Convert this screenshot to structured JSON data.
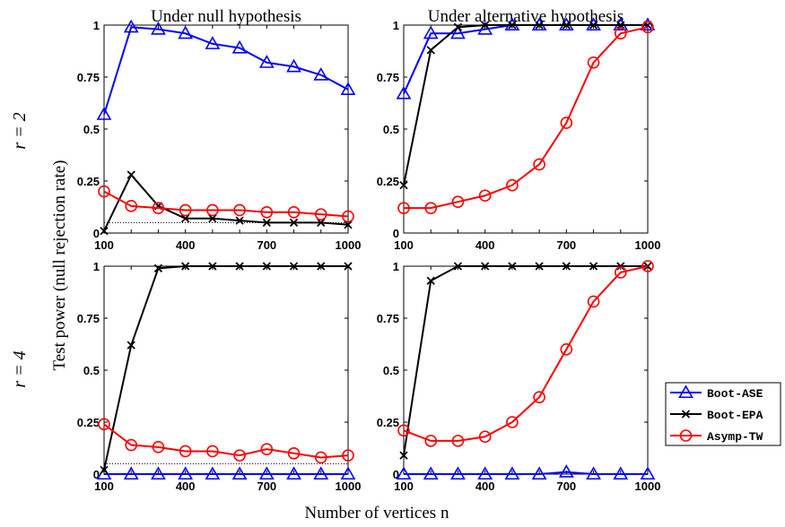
{
  "figure": {
    "column_titles": [
      "Under null hypothesis",
      "Under alternative hypothesis"
    ],
    "row_labels": [
      "r = 2",
      "r = 4"
    ],
    "ylabel": "Test power (null rejection rate)",
    "xlabel": "Number of vertices n"
  },
  "legend": [
    {
      "name": "Boot-ASE",
      "color": "#0000ff",
      "marker": "triangle"
    },
    {
      "name": "Boot-EPA",
      "color": "#000000",
      "marker": "x"
    },
    {
      "name": "Asymp-TW",
      "color": "#ff0000",
      "marker": "circle"
    }
  ],
  "chart_data": [
    {
      "type": "line",
      "title": "Under null hypothesis",
      "row": "r = 2",
      "x": [
        100,
        200,
        300,
        400,
        500,
        600,
        700,
        800,
        900,
        1000
      ],
      "xticks": [
        "100",
        "400",
        "700",
        "1000"
      ],
      "yticks": [
        "0",
        "0.25",
        "0.5",
        "0.75",
        "1"
      ],
      "xlim": [
        100,
        1000
      ],
      "ylim": [
        0,
        1
      ],
      "reference_line": 0.05,
      "series": [
        {
          "name": "Boot-ASE",
          "values": [
            0.57,
            0.99,
            0.98,
            0.96,
            0.91,
            0.89,
            0.82,
            0.8,
            0.76,
            0.69
          ]
        },
        {
          "name": "Boot-EPA",
          "values": [
            0.01,
            0.28,
            0.13,
            0.07,
            0.07,
            0.06,
            0.05,
            0.05,
            0.05,
            0.04
          ]
        },
        {
          "name": "Asymp-TW",
          "values": [
            0.2,
            0.13,
            0.12,
            0.11,
            0.11,
            0.11,
            0.1,
            0.1,
            0.09,
            0.08
          ]
        }
      ]
    },
    {
      "type": "line",
      "title": "Under alternative hypothesis",
      "row": "r = 2",
      "x": [
        100,
        200,
        300,
        400,
        500,
        600,
        700,
        800,
        900,
        1000
      ],
      "xticks": [
        "100",
        "400",
        "700",
        "1000"
      ],
      "yticks": [
        "0",
        "0.25",
        "0.5",
        "0.75",
        "1"
      ],
      "xlim": [
        100,
        1000
      ],
      "ylim": [
        0,
        1
      ],
      "series": [
        {
          "name": "Boot-ASE",
          "values": [
            0.67,
            0.96,
            0.96,
            0.98,
            1.0,
            1.0,
            1.0,
            1.0,
            1.0,
            1.0
          ]
        },
        {
          "name": "Boot-EPA",
          "values": [
            0.23,
            0.88,
            0.99,
            1.0,
            1.0,
            1.0,
            1.0,
            1.0,
            1.0,
            1.0
          ]
        },
        {
          "name": "Asymp-TW",
          "values": [
            0.12,
            0.12,
            0.15,
            0.18,
            0.23,
            0.33,
            0.53,
            0.82,
            0.96,
            0.99
          ]
        }
      ]
    },
    {
      "type": "line",
      "title": "",
      "row": "r = 4",
      "x": [
        100,
        200,
        300,
        400,
        500,
        600,
        700,
        800,
        900,
        1000
      ],
      "xticks": [
        "100",
        "400",
        "700",
        "1000"
      ],
      "yticks": [
        "0",
        "0.25",
        "0.5",
        "0.75",
        "1"
      ],
      "xlim": [
        100,
        1000
      ],
      "ylim": [
        0,
        1
      ],
      "reference_line": 0.05,
      "series": [
        {
          "name": "Boot-ASE",
          "values": [
            0,
            0,
            0,
            0,
            0,
            0,
            0,
            0,
            0,
            0
          ]
        },
        {
          "name": "Boot-EPA",
          "values": [
            0.02,
            0.62,
            0.99,
            1.0,
            1.0,
            1.0,
            1.0,
            1.0,
            1.0,
            1.0
          ]
        },
        {
          "name": "Asymp-TW",
          "values": [
            0.24,
            0.14,
            0.13,
            0.11,
            0.11,
            0.09,
            0.12,
            0.1,
            0.08,
            0.09
          ]
        }
      ]
    },
    {
      "type": "line",
      "title": "",
      "row": "r = 4",
      "x": [
        100,
        200,
        300,
        400,
        500,
        600,
        700,
        800,
        900,
        1000
      ],
      "xticks": [
        "100",
        "400",
        "700",
        "1000"
      ],
      "yticks": [
        "0",
        "0.25",
        "0.5",
        "0.75",
        "1"
      ],
      "xlim": [
        100,
        1000
      ],
      "ylim": [
        0,
        1
      ],
      "series": [
        {
          "name": "Boot-ASE",
          "values": [
            0,
            0,
            0,
            0,
            0,
            0,
            0.01,
            0,
            0,
            0
          ]
        },
        {
          "name": "Boot-EPA",
          "values": [
            0.09,
            0.93,
            1.0,
            1.0,
            1.0,
            1.0,
            1.0,
            1.0,
            1.0,
            1.0
          ]
        },
        {
          "name": "Asymp-TW",
          "values": [
            0.21,
            0.16,
            0.16,
            0.18,
            0.25,
            0.37,
            0.6,
            0.83,
            0.97,
            1.0
          ]
        }
      ]
    }
  ]
}
